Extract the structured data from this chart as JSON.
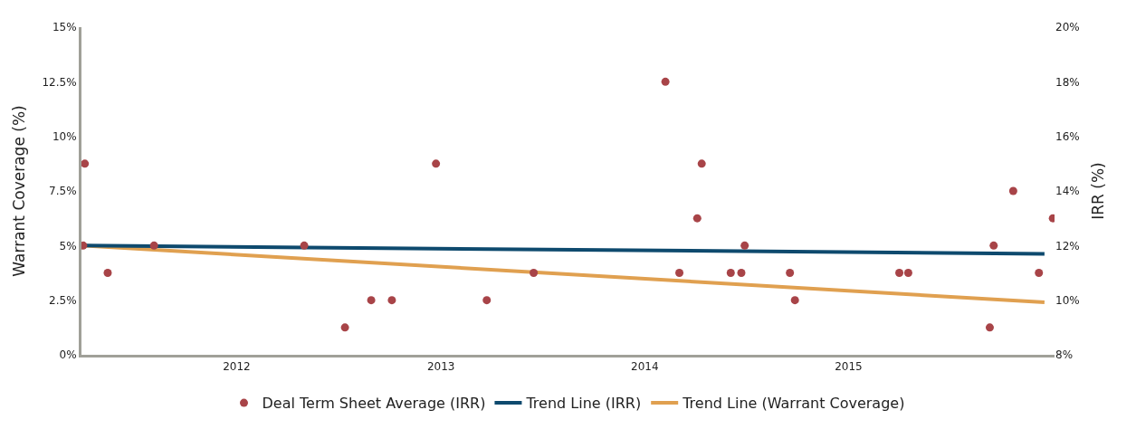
{
  "chart_data": {
    "type": "scatter",
    "ylabel": "Warrant Coverage (%)",
    "y2label": "IRR (%)",
    "xlim": [
      "2011-03-29",
      "2016-01-05"
    ],
    "xticks": [
      "2012",
      "2013",
      "2014",
      "2015"
    ],
    "ylim": [
      0,
      15
    ],
    "yticks": [
      {
        "value": 0,
        "label": "0%"
      },
      {
        "value": 2.5,
        "label": "2.5%"
      },
      {
        "value": 5,
        "label": "5%"
      },
      {
        "value": 7.5,
        "label": "7.5%"
      },
      {
        "value": 10,
        "label": "10%"
      },
      {
        "value": 12.5,
        "label": "12.5%"
      },
      {
        "value": 15,
        "label": "15%"
      }
    ],
    "y2lim": [
      8,
      20
    ],
    "y2ticks": [
      {
        "value": 8,
        "label": "8%"
      },
      {
        "value": 10,
        "label": "10%"
      },
      {
        "value": 12,
        "label": "12%"
      },
      {
        "value": 14,
        "label": "14%"
      },
      {
        "value": 16,
        "label": "16%"
      },
      {
        "value": 18,
        "label": "18%"
      },
      {
        "value": 20,
        "label": "20%"
      }
    ],
    "legend": "bottom",
    "series": [
      {
        "name": "Deal Term Sheet Average (IRR)",
        "axis": "y2",
        "color": "#a84448",
        "marker": "circle",
        "x": [
          "2011-04-04",
          "2011-04-01",
          "2011-05-15",
          "2011-08-06",
          "2012-05-01",
          "2012-07-13",
          "2012-08-29",
          "2012-10-05",
          "2012-12-23",
          "2013-03-24",
          "2013-06-16",
          "2014-02-07",
          "2014-03-04",
          "2014-04-05",
          "2014-04-13",
          "2014-06-04",
          "2014-06-23",
          "2014-06-29",
          "2014-09-18",
          "2014-09-27",
          "2015-04-02",
          "2015-04-18",
          "2015-09-11",
          "2015-09-18",
          "2015-10-23",
          "2015-12-08",
          "2016-01-02"
        ],
        "values": [
          15,
          12,
          11,
          12,
          12,
          9,
          10,
          10,
          15,
          10,
          11,
          18,
          11,
          13,
          15,
          11,
          11,
          12,
          11,
          10,
          11,
          11,
          9,
          12,
          14,
          11,
          13
        ]
      },
      {
        "name": "Trend Line (IRR)",
        "type": "line",
        "axis": "y2",
        "color": "#0e4a6e",
        "marker": "none",
        "line_style": "solid",
        "x": [
          "2011-03-29",
          "2015-12-18"
        ],
        "values": [
          12,
          11.7
        ]
      },
      {
        "name": "Trend Line (Warrant Coverage)",
        "type": "line",
        "color": "#e0a050",
        "marker": "none",
        "line_style": "solid",
        "x": [
          "2011-03-29",
          "2015-12-18"
        ],
        "values": [
          5,
          2.4
        ]
      }
    ]
  }
}
